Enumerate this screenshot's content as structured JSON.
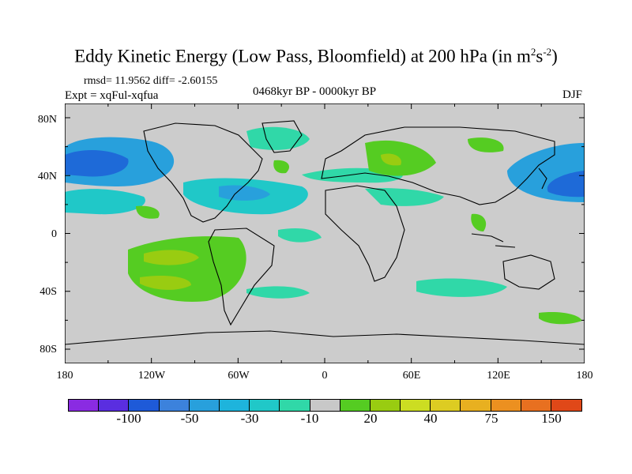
{
  "title": {
    "text": "Eddy Kinetic Energy (Low Pass, Bloomfield) at 200 hPa (in m",
    "sup1": "2",
    "mid": "s",
    "sup2": "-2",
    "end": ")"
  },
  "stats": "rmsd= 11.9562 diff= -2.60155",
  "period": "0468kyr BP - 0000kyr BP",
  "experiment": "Expt = xqFul-xqfua",
  "season": "DJF",
  "lat_ticks": [
    "80N",
    "40N",
    "0",
    "40S",
    "80S"
  ],
  "lon_ticks": [
    "180",
    "120W",
    "60W",
    "0",
    "60E",
    "120E",
    "180"
  ],
  "colorbar": {
    "colors": [
      "#8a2be2",
      "#5a2ee0",
      "#1e5ad8",
      "#3c82dc",
      "#28a0dc",
      "#1eb4dc",
      "#20c8c8",
      "#30d8a8",
      "#c8c8c8",
      "#55cc22",
      "#99cc11",
      "#ccdd22",
      "#ddcc22",
      "#e8b020",
      "#ec9020",
      "#e87020",
      "#e04818"
    ],
    "labels": [
      "-100",
      "-50",
      "-30",
      "-10",
      "20",
      "40",
      "75",
      "150"
    ]
  },
  "colors": {
    "background_ocean": "#cccccc",
    "coast": "#000000"
  }
}
